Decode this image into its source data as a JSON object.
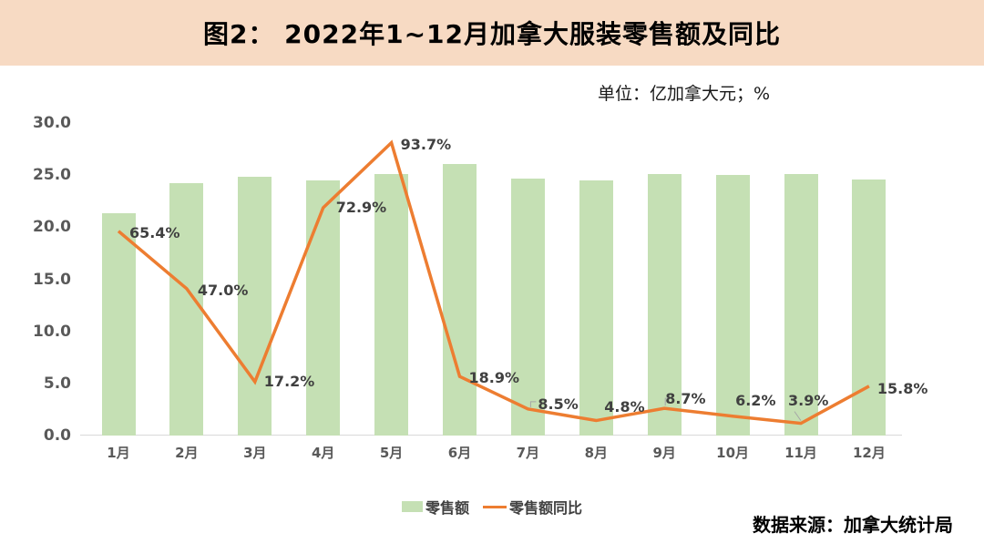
{
  "header": {
    "title": "图2： 2022年1~12月加拿大服装零售额及同比"
  },
  "unit_label": "单位：亿加拿大元；%",
  "chart_data": {
    "type": "bar",
    "subtype": "bar+line combo",
    "title": "图2： 2022年1~12月加拿大服装零售额及同比",
    "categories": [
      "1月",
      "2月",
      "3月",
      "4月",
      "5月",
      "6月",
      "7月",
      "8月",
      "9月",
      "10月",
      "11月",
      "12月"
    ],
    "series": [
      {
        "name": "零售额",
        "type": "bar",
        "color": "#C5E0B4",
        "axis": "left",
        "unit": "亿加拿大元",
        "values": [
          21.3,
          24.2,
          24.8,
          24.5,
          25.1,
          26.1,
          24.7,
          24.5,
          25.1,
          25.0,
          25.1,
          24.6
        ]
      },
      {
        "name": "零售额同比",
        "type": "line",
        "color": "#ED7D31",
        "axis": "hidden-secondary",
        "unit": "%",
        "values": [
          65.4,
          47.0,
          17.2,
          72.9,
          93.7,
          18.9,
          8.5,
          4.8,
          8.7,
          6.2,
          3.9,
          15.8
        ],
        "labels": [
          "65.4%",
          "47.0%",
          "17.2%",
          "72.9%",
          "93.7%",
          "18.9%",
          "8.5%",
          "4.8%",
          "8.7%",
          "6.2%",
          "3.9%",
          "15.8%"
        ]
      }
    ],
    "y_axis": {
      "min": 0,
      "max": 30,
      "step": 5,
      "tick_labels": [
        "0.0",
        "5.0",
        "10.0",
        "15.0",
        "20.0",
        "25.0",
        "30.0"
      ]
    },
    "secondary_axis": {
      "min": 0,
      "max": 100,
      "visible": false
    },
    "grid": false,
    "legend_position": "bottom"
  },
  "legend": {
    "items": [
      {
        "label": "零售额",
        "swatch": "bar",
        "color": "#C5E0B4"
      },
      {
        "label": "零售额同比",
        "swatch": "line",
        "color": "#ED7D31"
      }
    ]
  },
  "source": "数据来源：加拿大统计局",
  "colors": {
    "header_bg": "#F7DAC3",
    "bar": "#C5E0B4",
    "line": "#ED7D31",
    "axis_text": "#595959",
    "data_label": "#404040",
    "axis_line": "#D9D9D9",
    "leader_line": "#A6A6A6"
  }
}
